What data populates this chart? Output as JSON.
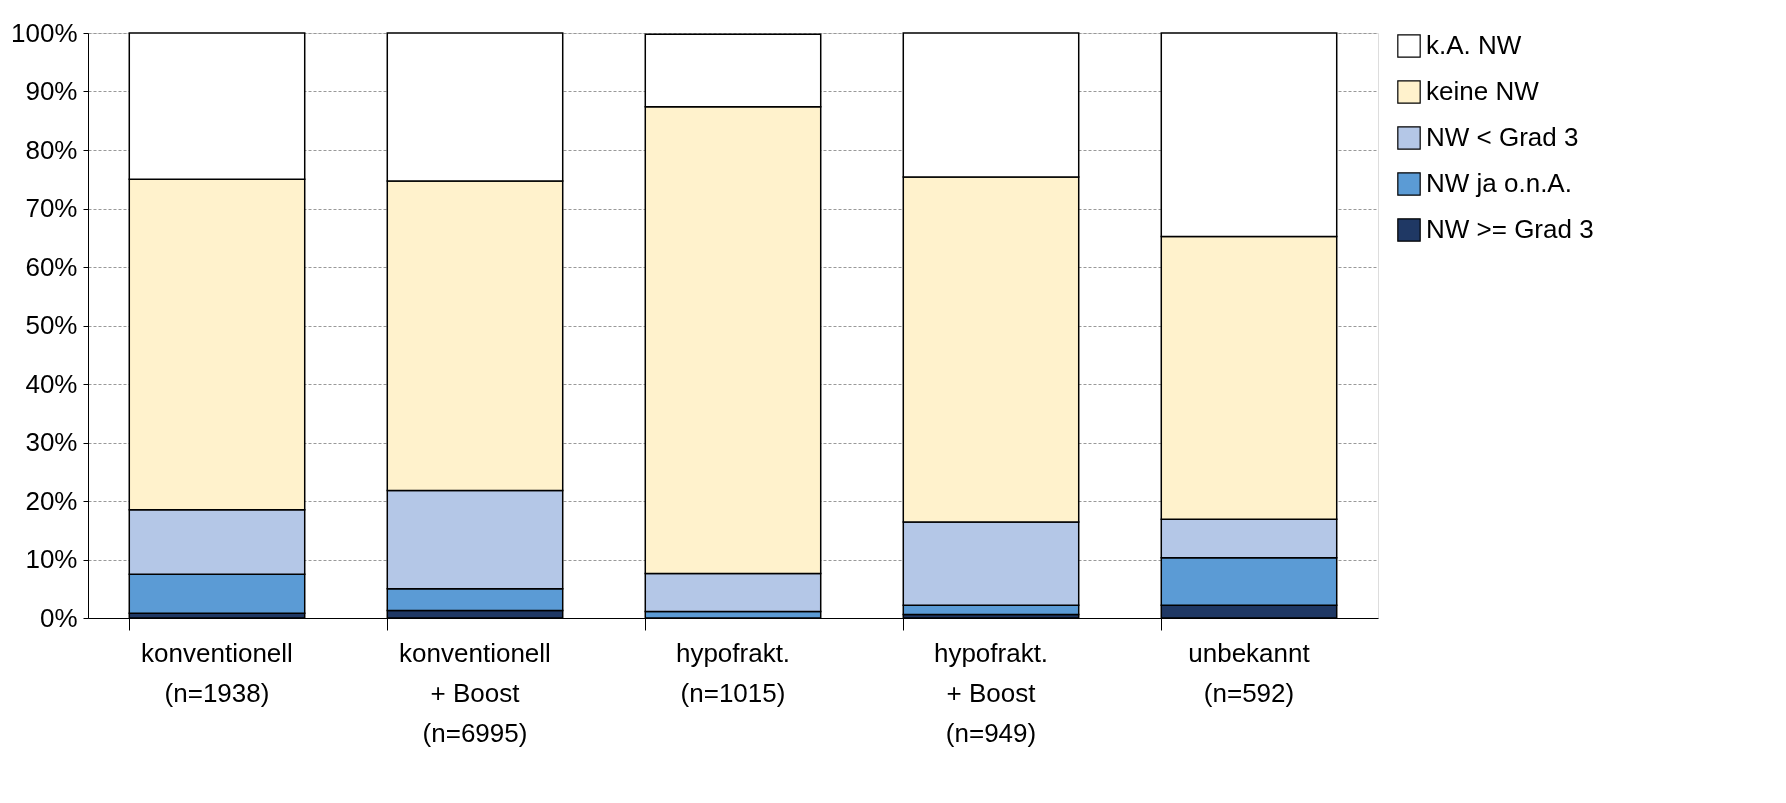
{
  "chart_data": {
    "type": "bar",
    "stacked": true,
    "categories": [
      "konventionell\n\n(n=1938)",
      "konventionell\n+ Boost\n(n=6995)",
      "hypofrakt.\n\n(n=1015)",
      "hypofrakt.\n+ Boost\n(n=949)",
      "unbekannt\n\n(n=592)"
    ],
    "series": [
      {
        "name": "NW >= Grad 3",
        "color": "#1f3864",
        "values": [
          0.8,
          1.3,
          null,
          0.6,
          2.2
        ]
      },
      {
        "name": "NW ja o.n.A.",
        "color": "#5b9bd5",
        "values": [
          6.7,
          3.7,
          1.1,
          1.6,
          8.1
        ]
      },
      {
        "name": "NW < Grad 3",
        "color": "#b4c7e7",
        "values": [
          11,
          16.8,
          6.5,
          14.2,
          6.6
        ]
      },
      {
        "name": "keine NW",
        "color": "#fff2cc",
        "values": [
          56.5,
          52.9,
          79.8,
          59,
          48.3
        ]
      },
      {
        "name": "k.A. NW",
        "color": "#ffffff",
        "values": [
          25,
          25.3,
          12.4,
          24.6,
          34.8
        ]
      }
    ],
    "ylim": [
      0,
      100
    ],
    "yticks": [
      {
        "value": 0,
        "label": "0%"
      },
      {
        "value": 10,
        "label": "10%"
      },
      {
        "value": 20,
        "label": "20%"
      },
      {
        "value": 30,
        "label": "30%"
      },
      {
        "value": 40,
        "label": "40%"
      },
      {
        "value": 50,
        "label": "50%"
      },
      {
        "value": 60,
        "label": "60%"
      },
      {
        "value": 70,
        "label": "70%"
      },
      {
        "value": 80,
        "label": "80%"
      },
      {
        "value": 90,
        "label": "90%"
      },
      {
        "value": 100,
        "label": "100%"
      }
    ],
    "grid": "y",
    "legend": "right"
  }
}
